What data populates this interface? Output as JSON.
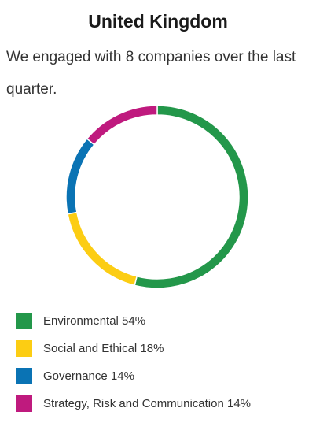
{
  "title": "United Kingdom",
  "description": "We engaged with 8 companies over the last quarter.",
  "chart_data": {
    "type": "pie",
    "variant": "donut",
    "categories": [
      "Environmental",
      "Social and Ethical",
      "Governance",
      "Strategy, Risk and Communication"
    ],
    "values": [
      54,
      18,
      14,
      14
    ],
    "unit": "%",
    "colors": [
      "#23974a",
      "#fccd13",
      "#0a73b4",
      "#bf1a7e"
    ],
    "legend_position": "bottom-left",
    "legend": [
      {
        "label": "Environmental 54%",
        "color": "#23974a"
      },
      {
        "label": "Social and Ethical 18%",
        "color": "#fccd13"
      },
      {
        "label": "Governance 14%",
        "color": "#0a73b4"
      },
      {
        "label": "Strategy, Risk and Communication 14%",
        "color": "#bf1a7e"
      }
    ]
  }
}
